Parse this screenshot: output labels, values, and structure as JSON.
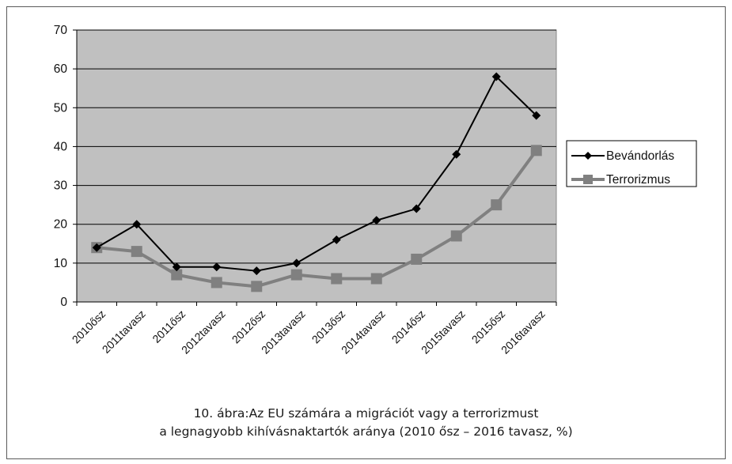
{
  "chart_data": {
    "type": "line",
    "categories": [
      "2010ősz",
      "2011tavasz",
      "2011ősz",
      "2012tavasz",
      "2012ősz",
      "2013tavasz",
      "2013ősz",
      "2014tavasz",
      "2014ősz",
      "2015tavasz",
      "2015ősz",
      "2016tavasz"
    ],
    "series": [
      {
        "name": "Bevándorlás",
        "values": [
          14,
          20,
          9,
          9,
          8,
          10,
          16,
          21,
          24,
          38,
          58,
          48
        ],
        "color": "#000000",
        "marker": "diamond"
      },
      {
        "name": "Terrorizmus",
        "values": [
          14,
          13,
          7,
          5,
          4,
          7,
          6,
          6,
          11,
          17,
          25,
          39
        ],
        "color": "#808080",
        "marker": "square"
      }
    ],
    "ylim": [
      0,
      70
    ],
    "yticks": [
      0,
      10,
      20,
      30,
      40,
      50,
      60,
      70
    ],
    "grid": true,
    "plot_background": "#c0c0c0",
    "legend_position": "right",
    "title": "",
    "xlabel": "",
    "ylabel": ""
  },
  "caption": {
    "line1": "10. ábra:Az EU számára a migrációt vagy a terrorizmust",
    "line2": "a legnagyobb kihívásnaktartók aránya (2010 ősz – 2016 tavasz, %)"
  }
}
